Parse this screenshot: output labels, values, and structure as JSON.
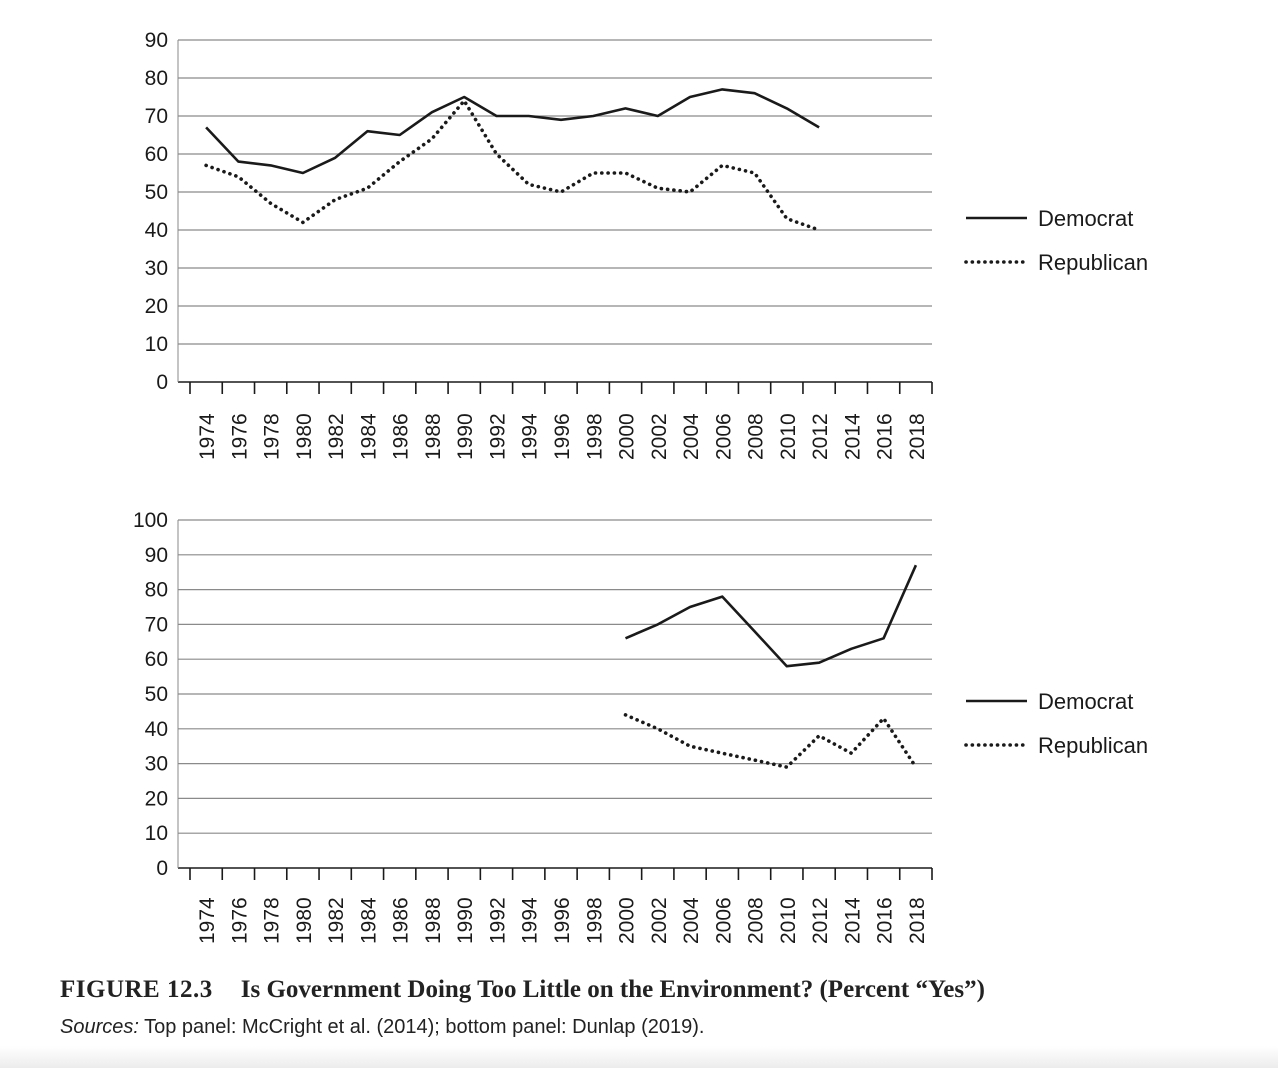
{
  "figure": {
    "label": "FIGURE 12.3",
    "title": "Is Government Doing Too Little on the Environment? (Percent “Yes”)",
    "sources_label": "Sources:",
    "sources_text": " Top panel: McCright et al. (2014); bottom panel: Dunlap (2019)."
  },
  "chart_data": [
    {
      "type": "line",
      "panel": "top",
      "title": "",
      "xlabel": "",
      "ylabel": "",
      "xlim": [
        1973,
        2019
      ],
      "ylim": [
        0,
        90
      ],
      "yticks": [
        0,
        10,
        20,
        30,
        40,
        50,
        60,
        70,
        80,
        90
      ],
      "xticks": [
        1974,
        1976,
        1978,
        1980,
        1982,
        1984,
        1986,
        1988,
        1990,
        1992,
        1994,
        1996,
        1998,
        2000,
        2002,
        2004,
        2006,
        2008,
        2010,
        2012,
        2014,
        2016,
        2018
      ],
      "grid": "horizontal",
      "legend": "right",
      "series": [
        {
          "name": "Democrat",
          "style": "solid",
          "color": "#1a1a1a",
          "points": [
            [
              1974,
              67
            ],
            [
              1976,
              58
            ],
            [
              1978,
              57
            ],
            [
              1980,
              55
            ],
            [
              1982,
              59
            ],
            [
              1984,
              66
            ],
            [
              1986,
              65
            ],
            [
              1988,
              71
            ],
            [
              1990,
              75
            ],
            [
              1992,
              70
            ],
            [
              1994,
              70
            ],
            [
              1996,
              69
            ],
            [
              1998,
              70
            ],
            [
              2000,
              72
            ],
            [
              2002,
              70
            ],
            [
              2004,
              75
            ],
            [
              2006,
              77
            ],
            [
              2008,
              76
            ],
            [
              2010,
              72
            ],
            [
              2012,
              67
            ]
          ]
        },
        {
          "name": "Republican",
          "style": "dotted",
          "color": "#1a1a1a",
          "points": [
            [
              1974,
              57
            ],
            [
              1976,
              54
            ],
            [
              1978,
              47
            ],
            [
              1980,
              42
            ],
            [
              1982,
              48
            ],
            [
              1984,
              51
            ],
            [
              1986,
              58
            ],
            [
              1988,
              64
            ],
            [
              1990,
              74
            ],
            [
              1992,
              60
            ],
            [
              1994,
              52
            ],
            [
              1996,
              50
            ],
            [
              1998,
              55
            ],
            [
              2000,
              55
            ],
            [
              2002,
              51
            ],
            [
              2004,
              50
            ],
            [
              2006,
              57
            ],
            [
              2008,
              55
            ],
            [
              2010,
              43
            ],
            [
              2012,
              40
            ]
          ]
        }
      ]
    },
    {
      "type": "line",
      "panel": "bottom",
      "title": "",
      "xlabel": "",
      "ylabel": "",
      "xlim": [
        1973,
        2019
      ],
      "ylim": [
        0,
        100
      ],
      "yticks": [
        0,
        10,
        20,
        30,
        40,
        50,
        60,
        70,
        80,
        90,
        100
      ],
      "xticks": [
        1974,
        1976,
        1978,
        1980,
        1982,
        1984,
        1986,
        1988,
        1990,
        1992,
        1994,
        1996,
        1998,
        2000,
        2002,
        2004,
        2006,
        2008,
        2010,
        2012,
        2014,
        2016,
        2018
      ],
      "grid": "horizontal",
      "legend": "right",
      "series": [
        {
          "name": "Democrat",
          "style": "solid",
          "color": "#1a1a1a",
          "points": [
            [
              2000,
              66
            ],
            [
              2002,
              70
            ],
            [
              2004,
              75
            ],
            [
              2006,
              78
            ],
            [
              2008,
              68
            ],
            [
              2010,
              58
            ],
            [
              2012,
              59
            ],
            [
              2014,
              63
            ],
            [
              2016,
              66
            ],
            [
              2018,
              87
            ]
          ]
        },
        {
          "name": "Republican",
          "style": "dotted",
          "color": "#1a1a1a",
          "points": [
            [
              2000,
              44
            ],
            [
              2002,
              40
            ],
            [
              2004,
              35
            ],
            [
              2006,
              33
            ],
            [
              2008,
              31
            ],
            [
              2010,
              29
            ],
            [
              2012,
              38
            ],
            [
              2014,
              33
            ],
            [
              2016,
              43
            ],
            [
              2018,
              29
            ]
          ]
        }
      ]
    }
  ]
}
